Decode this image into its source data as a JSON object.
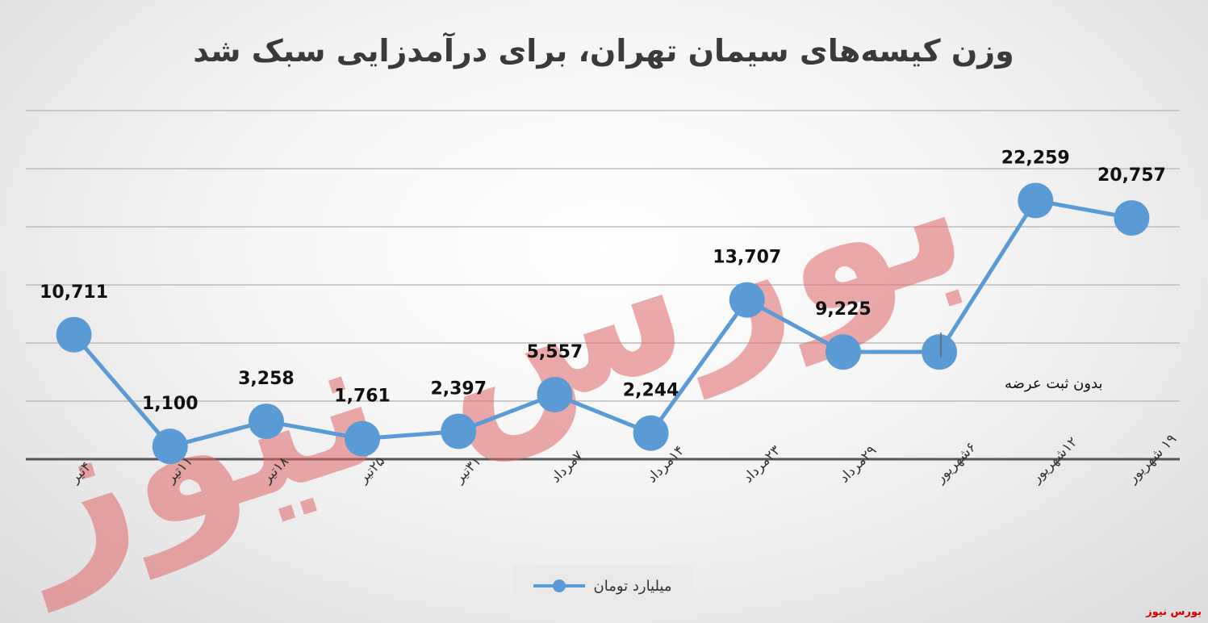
{
  "chart_data": {
    "type": "line",
    "title": "وزن کیسه‌های سیمان تهران، برای درآمدزایی سبک شد",
    "categories": [
      "۴تیر",
      "۱۱تیر",
      "۱۸تیر",
      "۲۵تیر",
      "۳۱تیر",
      "۷مرداد",
      "۱۴مرداد",
      "۲۳مرداد",
      "۲۹مرداد",
      "۶شهریور",
      "۱۲شهریور",
      "۱۹ شهریور"
    ],
    "series": [
      {
        "name": "میلیارد تومان",
        "values": [
          10711,
          1100,
          3258,
          1761,
          2397,
          5557,
          2244,
          13707,
          9225,
          9225,
          22259,
          20757
        ],
        "labels": [
          "10,711",
          "1,100",
          "3,258",
          "1,761",
          "2,397",
          "5,557",
          "2,244",
          "13,707",
          "9,225",
          "",
          "22,259",
          "20,757"
        ]
      }
    ],
    "annotation": "بدون ثبت عرضه",
    "ylim": [
      0,
      30000
    ],
    "grid": true,
    "legend_position": "bottom",
    "line_color": "#5b9bd5"
  },
  "watermark": "بورس نیوز",
  "source_mark": "بورس نیوز"
}
